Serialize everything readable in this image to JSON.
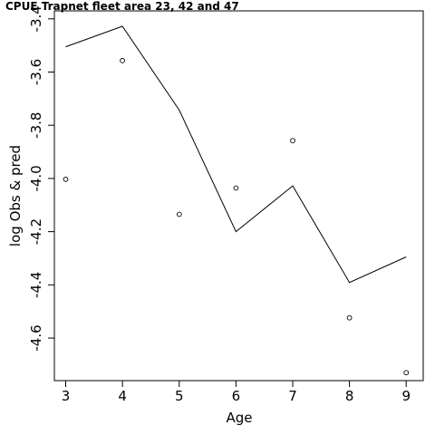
{
  "chart_data": {
    "type": "line",
    "title": "CPUE Trapnet fleet area 23, 42 and 47",
    "xlabel": "Age",
    "ylabel": "log Obs & pred",
    "xlim": [
      2.8,
      9.3
    ],
    "ylim": [
      -4.76,
      -3.37
    ],
    "x_ticks": [
      3,
      4,
      5,
      6,
      7,
      8,
      9
    ],
    "y_ticks": [
      -3.4,
      -3.6,
      -3.8,
      -4.0,
      -4.2,
      -4.4,
      -4.6
    ],
    "y_tick_labels": [
      "-3.4",
      "-3.6",
      "-3.8",
      "-4.0",
      "-4.2",
      "-4.4",
      "-4.6"
    ],
    "grid": false,
    "series": [
      {
        "style": "line",
        "x": [
          3,
          4,
          5,
          6,
          7,
          8,
          9
        ],
        "y": [
          -3.505,
          -3.428,
          -3.743,
          -4.2,
          -4.028,
          -4.391,
          -4.295
        ]
      },
      {
        "style": "points",
        "x": [
          3,
          4,
          5,
          6,
          7,
          8,
          9
        ],
        "y": [
          -4.003,
          -3.557,
          -4.135,
          -4.036,
          -3.858,
          -4.524,
          -4.73
        ]
      }
    ]
  }
}
